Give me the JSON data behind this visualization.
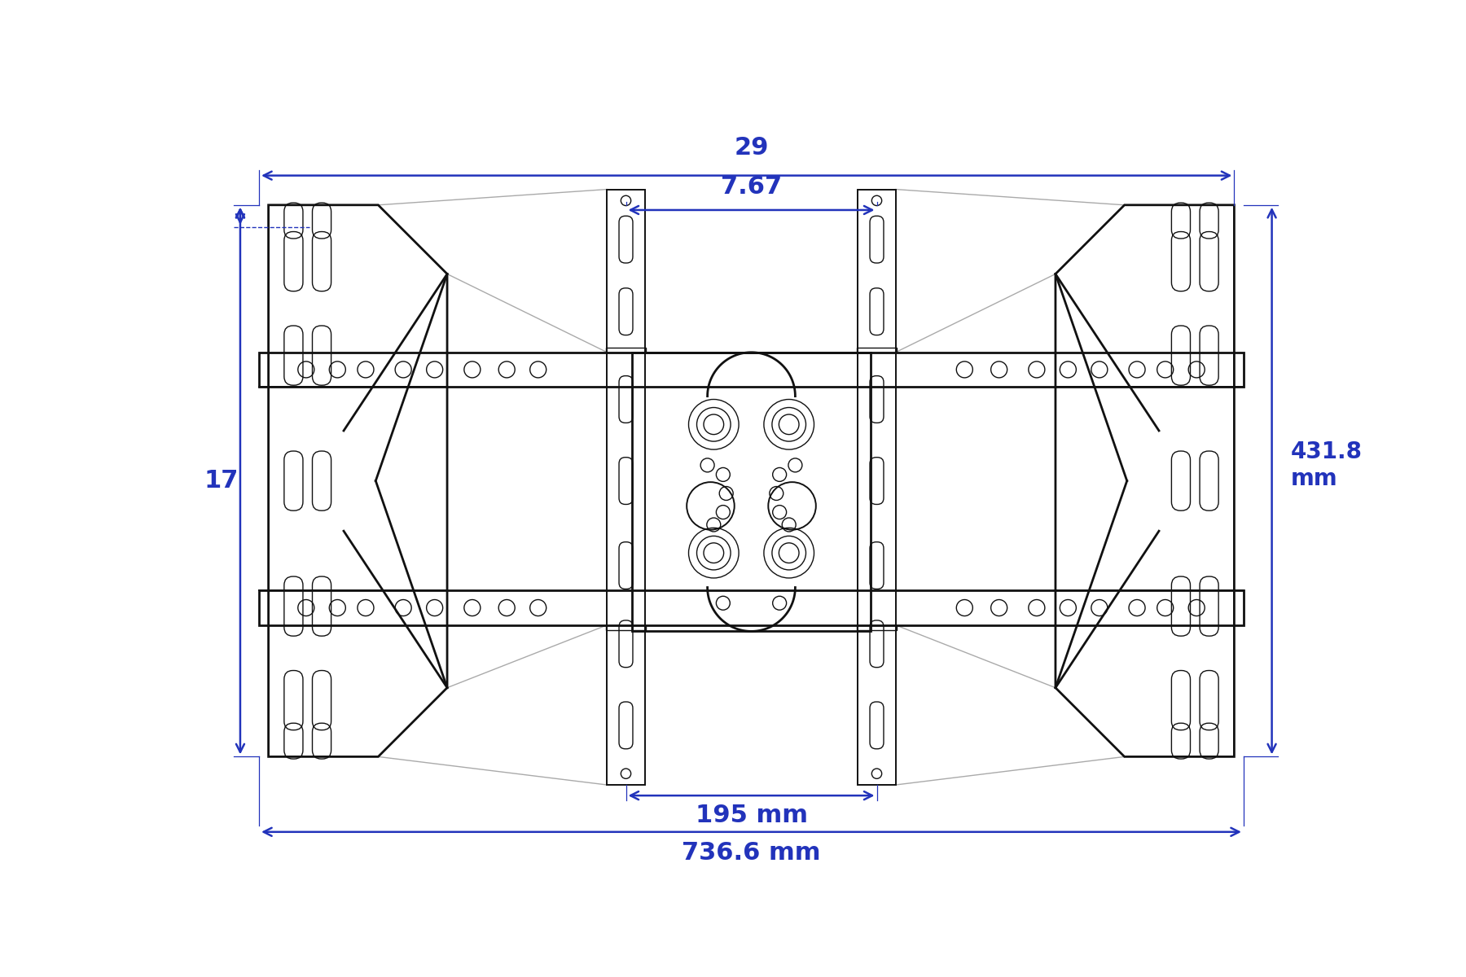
{
  "bg_color": "#ffffff",
  "line_color": "#111111",
  "dim_color": "#2233bb",
  "gray_color": "#aaaaaa",
  "fig_width": 18.0,
  "fig_height": 12.0,
  "dim_29": "29",
  "dim_767": "7.67",
  "dim_17": "17",
  "dim_431": "431.8\nmm",
  "dim_195": "195 mm",
  "dim_736": "736.6 mm"
}
